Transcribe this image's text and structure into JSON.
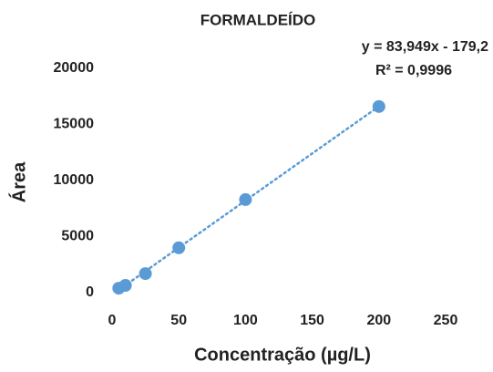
{
  "chart_data": {
    "type": "scatter",
    "title": "FORMALDEÍDO",
    "x_label": "Concentração (µg/L)",
    "y_label": "Área",
    "series": [
      {
        "name": "Formaldeído",
        "color": "#5b9bd5",
        "x": [
          5,
          10,
          25,
          50,
          100,
          200
        ],
        "values": [
          400,
          650,
          1700,
          4000,
          8300,
          16600
        ]
      }
    ],
    "trendline": {
      "slope": 83.949,
      "intercept": -179.2,
      "label": "y = 83,949x - 179,2",
      "r2_label": "R² = 0,9996",
      "color": "#5b9bd5"
    },
    "xlim": [
      0,
      250
    ],
    "xticks": [
      0,
      50,
      100,
      150,
      200,
      250
    ],
    "ylim": [
      0,
      20000
    ],
    "yticks": [
      0,
      5000,
      10000,
      15000,
      20000
    ],
    "grid": false
  }
}
